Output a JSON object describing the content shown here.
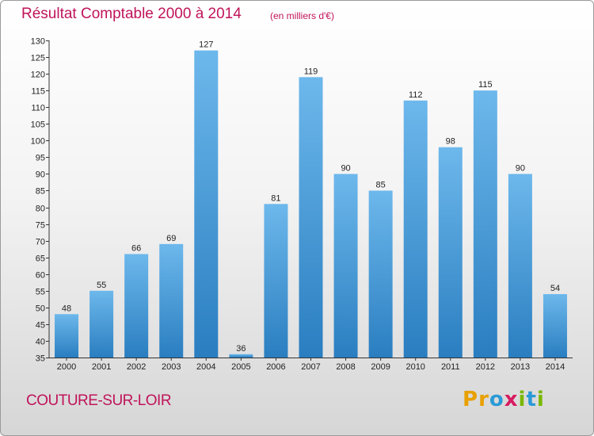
{
  "header": {
    "title": "Résultat Comptable 2000 à 2014",
    "subtitle": "(en milliers d'€)"
  },
  "footer": {
    "town": "COUTURE-SUR-LOIR",
    "logo": {
      "letters": [
        "P",
        "r",
        "o",
        "x",
        "i",
        "t",
        "i"
      ],
      "colors": [
        "#e8a000",
        "#e8a000",
        "#2a9ad6",
        "#d81b60",
        "#7ab800",
        "#2a9ad6",
        "#7ab800"
      ]
    }
  },
  "chart_data": {
    "type": "bar",
    "title": "Résultat Comptable 2000 à 2014",
    "subtitle": "(en milliers d'€)",
    "categories": [
      "2000",
      "2001",
      "2002",
      "2003",
      "2004",
      "2005",
      "2006",
      "2007",
      "2008",
      "2009",
      "2010",
      "2011",
      "2012",
      "2013",
      "2014"
    ],
    "values": [
      48,
      55,
      66,
      69,
      127,
      36,
      81,
      119,
      90,
      85,
      112,
      98,
      115,
      90,
      54
    ],
    "ylim": [
      35,
      130
    ],
    "yticks": [
      35,
      40,
      45,
      50,
      55,
      60,
      65,
      70,
      75,
      80,
      85,
      90,
      95,
      100,
      105,
      110,
      115,
      120,
      125,
      130
    ],
    "grid": false,
    "bar_color_top": "#6db8ec",
    "bar_color_bottom": "#2a7ec0"
  }
}
